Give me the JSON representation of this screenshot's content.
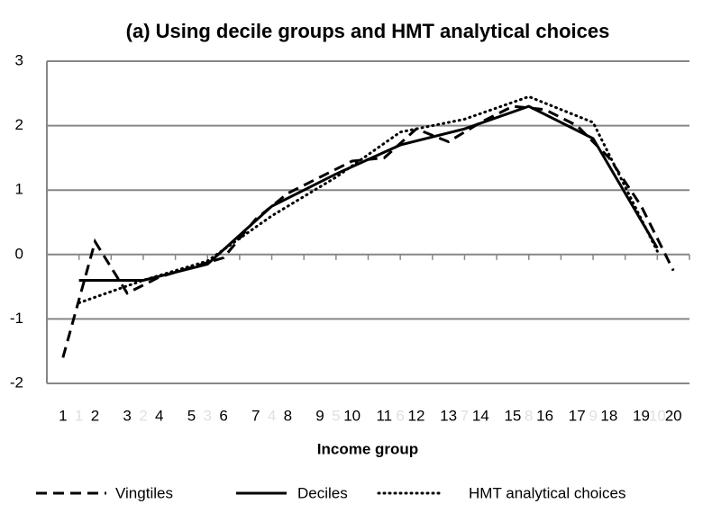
{
  "chart_data": {
    "type": "line",
    "title": "(a)  Using decile groups and HMT analytical choices",
    "x_label": "Income group",
    "xlim": [
      0.5,
      20.5
    ],
    "xticks": [
      1,
      2,
      3,
      4,
      5,
      6,
      7,
      8,
      9,
      10,
      11,
      12,
      13,
      14,
      15,
      16,
      17,
      18,
      19,
      20
    ],
    "secondary_x_labels": {
      "color": "#e0e0e0",
      "x": [
        1.5,
        3.5,
        5.5,
        7.5,
        9.5,
        11.5,
        13.5,
        15.5,
        17.5,
        19.5
      ],
      "labels": [
        "1",
        "2",
        "3",
        "4",
        "5",
        "6",
        "7",
        "8",
        "9",
        "10"
      ]
    },
    "ylim": [
      -2,
      3
    ],
    "yticks": [
      -2,
      -1,
      0,
      1,
      2,
      3
    ],
    "grid": true,
    "legend": "bottom",
    "series": [
      {
        "name": "Vingtiles",
        "color": "#000000",
        "dash": "dashed",
        "x": [
          1,
          2,
          3,
          4,
          5,
          6,
          7,
          8,
          9,
          10,
          11,
          12,
          13,
          14,
          15,
          16,
          17,
          18,
          19,
          20
        ],
        "values": [
          -1.6,
          0.2,
          -0.6,
          -0.35,
          -0.2,
          -0.05,
          0.55,
          0.95,
          1.2,
          1.45,
          1.5,
          1.95,
          1.75,
          2.05,
          2.3,
          2.25,
          2.0,
          1.5,
          0.75,
          -0.25
        ]
      },
      {
        "name": "Deciles",
        "color": "#000000",
        "dash": "solid",
        "x": [
          1.5,
          3.5,
          5.5,
          7.5,
          9.5,
          11.5,
          13.5,
          15.5,
          17.5,
          19.5
        ],
        "values": [
          -0.4,
          -0.4,
          -0.15,
          0.75,
          1.25,
          1.7,
          1.95,
          2.3,
          1.8,
          0.1
        ]
      },
      {
        "name": "HMT analytical choices",
        "color": "#000000",
        "dash": "dotted",
        "x": [
          1.5,
          3.5,
          5.5,
          7.5,
          9.5,
          11.5,
          13.5,
          15.5,
          17.5,
          19.5
        ],
        "values": [
          -0.75,
          -0.4,
          -0.1,
          0.6,
          1.2,
          1.9,
          2.1,
          2.45,
          2.05,
          0.05
        ]
      }
    ]
  }
}
